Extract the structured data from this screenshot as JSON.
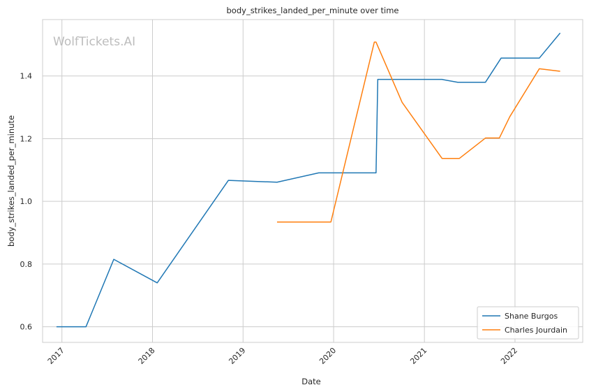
{
  "chart_data": {
    "type": "line",
    "title": "body_strikes_landed_per_minute over time",
    "xlabel": "Date",
    "ylabel": "body_strikes_landed_per_minute",
    "watermark": "WolfTickets.AI",
    "xlim": [
      "2016-10-15",
      "2022-10-01"
    ],
    "ylim": [
      0.55,
      1.58
    ],
    "x_ticks": [
      "2017",
      "2018",
      "2019",
      "2020",
      "2021",
      "2022"
    ],
    "y_ticks": [
      0.6,
      0.8,
      1.0,
      1.2,
      1.4
    ],
    "y_tick_labels": [
      "0.6",
      "0.8",
      "1.0",
      "1.2",
      "1.4"
    ],
    "grid": true,
    "legend_position": "lower-right",
    "series": [
      {
        "name": "Shane Burgos",
        "color": "#1f77b4",
        "points": [
          [
            "2016-12-10",
            0.6
          ],
          [
            "2017-04-08",
            0.6
          ],
          [
            "2017-07-29",
            0.815
          ],
          [
            "2018-01-20",
            0.74
          ],
          [
            "2018-11-03",
            1.067
          ],
          [
            "2019-05-18",
            1.061
          ],
          [
            "2019-11-02",
            1.091
          ],
          [
            "2020-06-20",
            1.091
          ],
          [
            "2020-06-27",
            1.389
          ],
          [
            "2021-03-13",
            1.389
          ],
          [
            "2021-05-15",
            1.38
          ],
          [
            "2021-09-04",
            1.38
          ],
          [
            "2021-11-06",
            1.457
          ],
          [
            "2022-04-09",
            1.457
          ],
          [
            "2022-07-02",
            1.537
          ]
        ]
      },
      {
        "name": "Charles Jourdain",
        "color": "#ff7f0e",
        "points": [
          [
            "2019-05-18",
            0.934
          ],
          [
            "2019-12-21",
            0.934
          ],
          [
            "2020-06-13",
            1.508
          ],
          [
            "2020-06-20",
            1.508
          ],
          [
            "2020-10-03",
            1.316
          ],
          [
            "2021-03-13",
            1.137
          ],
          [
            "2021-05-22",
            1.137
          ],
          [
            "2021-09-04",
            1.202
          ],
          [
            "2021-10-30",
            1.202
          ],
          [
            "2021-12-11",
            1.27
          ],
          [
            "2022-04-09",
            1.423
          ],
          [
            "2022-07-02",
            1.415
          ]
        ]
      }
    ]
  }
}
